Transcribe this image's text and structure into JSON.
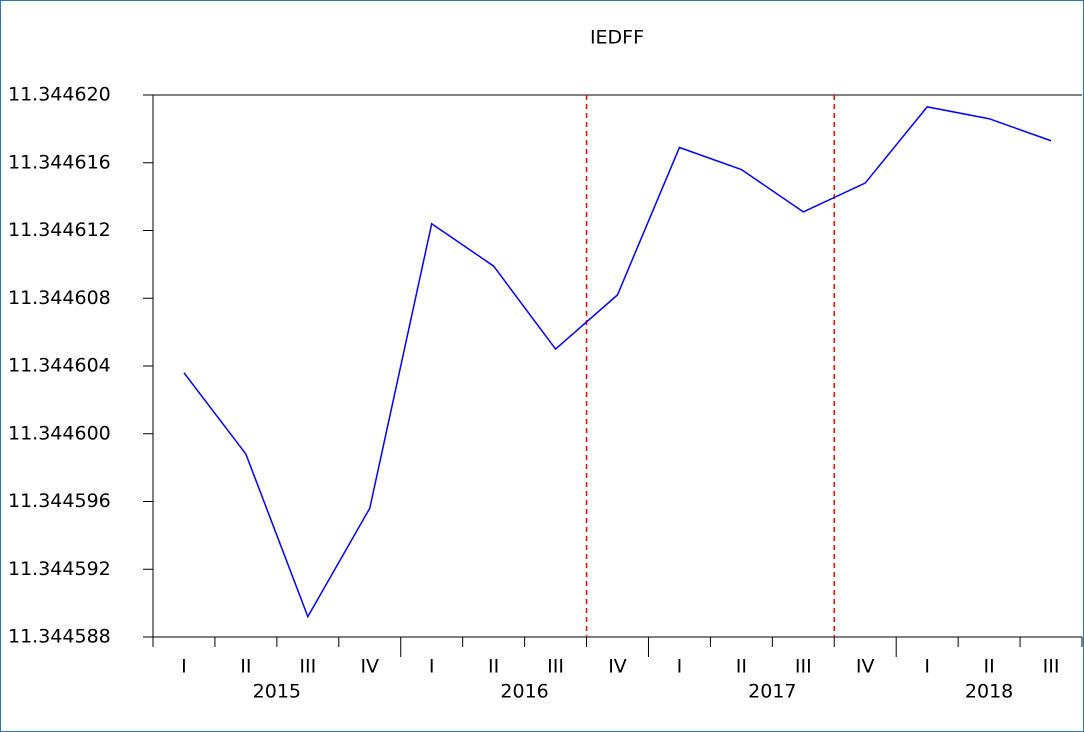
{
  "chart_data": {
    "type": "line",
    "title": "IEDFF",
    "categories": [
      "I",
      "II",
      "III",
      "IV",
      "I",
      "II",
      "III",
      "IV",
      "I",
      "II",
      "III",
      "IV",
      "I",
      "II",
      "III"
    ],
    "groups": [
      {
        "label": "2015",
        "start": 0,
        "end": 3
      },
      {
        "label": "2016",
        "start": 4,
        "end": 7
      },
      {
        "label": "2017",
        "start": 8,
        "end": 11
      },
      {
        "label": "2018",
        "start": 12,
        "end": 14
      }
    ],
    "series": [
      {
        "name": "IEDFF",
        "color": "#0000ff",
        "values": [
          11.3446036,
          11.3445988,
          11.3445892,
          11.3445956,
          11.3446124,
          11.3446099,
          11.344605,
          11.3446082,
          11.3446169,
          11.3446156,
          11.3446131,
          11.3446148,
          11.3446193,
          11.3446186,
          11.3446173
        ]
      }
    ],
    "vertical_lines": {
      "color": "#ff0000",
      "positions": [
        6.5,
        10.5
      ]
    },
    "ylim": [
      11.344588,
      11.34462
    ],
    "yticks": [
      {
        "value": 11.344588,
        "label": "11.344588"
      },
      {
        "value": 11.344592,
        "label": "11.344592"
      },
      {
        "value": 11.344596,
        "label": "11.344596"
      },
      {
        "value": 11.3446,
        "label": "11.344600"
      },
      {
        "value": 11.344604,
        "label": "11.344604"
      },
      {
        "value": 11.344608,
        "label": "11.344608"
      },
      {
        "value": 11.344612,
        "label": "11.344612"
      },
      {
        "value": 11.344616,
        "label": "11.344616"
      },
      {
        "value": 11.34462,
        "label": "11.344620"
      }
    ]
  }
}
